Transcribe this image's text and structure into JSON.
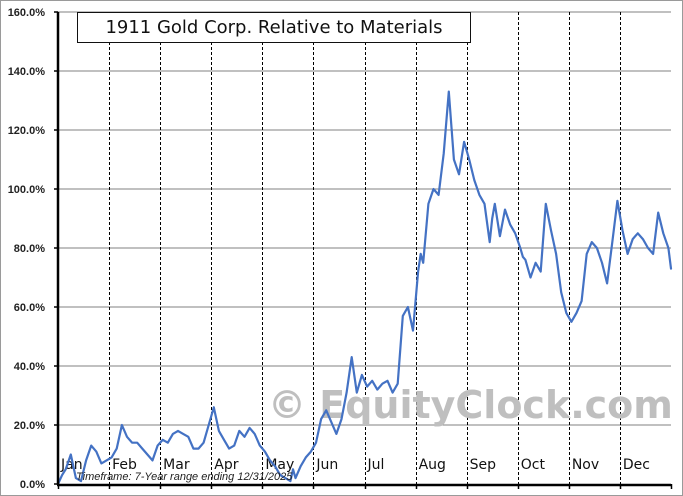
{
  "chart_data": {
    "type": "line",
    "title": "1911 Gold Corp. Relative to Materials",
    "xlabel": "",
    "ylabel": "",
    "ylim": [
      0,
      160
    ],
    "yticks": [
      "0.0%",
      "20.0%",
      "40.0%",
      "60.0%",
      "80.0%",
      "100.0%",
      "120.0%",
      "140.0%",
      "160.0%"
    ],
    "categories": [
      "Jan",
      "Feb",
      "Mar",
      "Apr",
      "May",
      "Jun",
      "Jul",
      "Aug",
      "Sep",
      "Oct",
      "Nov",
      "Dec"
    ],
    "grid": {
      "horizontal": true,
      "vertical_dashed_month_separators": true
    },
    "legend": null,
    "annotations": [
      "Timeframe: 7-Year range ending 12/31/2025",
      "© EquityClock.com"
    ],
    "series": [
      {
        "name": "1911 Gold Corp. Relative to Materials",
        "color": "#4472c4",
        "x_month_fraction": [
          0.0,
          0.08,
          0.15,
          0.25,
          0.35,
          0.45,
          0.55,
          0.65,
          0.75,
          0.85,
          0.95,
          1.05,
          1.15,
          1.25,
          1.35,
          1.45,
          1.55,
          1.65,
          1.75,
          1.85,
          1.95,
          2.05,
          2.15,
          2.25,
          2.35,
          2.45,
          2.55,
          2.65,
          2.75,
          2.85,
          2.95,
          3.05,
          3.15,
          3.25,
          3.35,
          3.45,
          3.55,
          3.65,
          3.75,
          3.85,
          3.95,
          4.05,
          4.15,
          4.25,
          4.35,
          4.45,
          4.55,
          4.6,
          4.65,
          4.75,
          4.85,
          4.95,
          5.05,
          5.15,
          5.25,
          5.35,
          5.45,
          5.55,
          5.65,
          5.75,
          5.85,
          5.95,
          6.05,
          6.15,
          6.25,
          6.35,
          6.45,
          6.55,
          6.65,
          6.75,
          6.85,
          6.95,
          7.05,
          7.1,
          7.15,
          7.25,
          7.35,
          7.45,
          7.55,
          7.65,
          7.75,
          7.85,
          7.95,
          8.05,
          8.15,
          8.25,
          8.35,
          8.45,
          8.5,
          8.55,
          8.65,
          8.75,
          8.85,
          8.95,
          9.05,
          9.1,
          9.15,
          9.25,
          9.35,
          9.45,
          9.55,
          9.65,
          9.75,
          9.85,
          9.95,
          10.05,
          10.15,
          10.25,
          10.35,
          10.45,
          10.55,
          10.65,
          10.75,
          10.85,
          10.95,
          11.05,
          11.15,
          11.25,
          11.35,
          11.45,
          11.55,
          11.65,
          11.75,
          11.85,
          11.95,
          12.0
        ],
        "values": [
          0,
          3,
          5,
          10,
          2,
          1,
          8,
          13,
          11,
          7,
          8,
          9,
          12,
          20,
          16,
          14,
          14,
          12,
          10,
          8,
          13,
          15,
          14,
          17,
          18,
          17,
          16,
          12,
          12,
          14,
          20,
          26,
          18,
          15,
          12,
          13,
          18,
          16,
          19,
          17,
          13,
          11,
          8,
          6,
          3,
          2,
          1,
          5,
          2,
          6,
          9,
          11,
          14,
          22,
          25,
          21,
          17,
          22,
          31,
          43,
          31,
          37,
          33,
          35,
          32,
          34,
          35,
          31,
          34,
          57,
          60,
          52,
          72,
          78,
          75,
          95,
          100,
          98,
          112,
          133,
          110,
          105,
          116,
          110,
          103,
          98,
          95,
          82,
          90,
          95,
          84,
          93,
          88,
          85,
          80,
          77,
          76,
          70,
          75,
          72,
          95,
          86,
          78,
          65,
          58,
          55,
          58,
          62,
          78,
          82,
          80,
          75,
          68,
          82,
          96,
          86,
          78,
          83,
          85,
          83,
          80,
          78,
          92,
          85,
          80,
          73
        ]
      }
    ]
  },
  "header": {
    "title": "1911 Gold Corp. Relative to Materials"
  },
  "footer": {
    "timeframe_note": "Timeframe: 7-Year range ending 12/31/2025",
    "watermark": "© EquityClock.com"
  },
  "axes": {
    "y_labels": [
      "0.0%",
      "20.0%",
      "40.0%",
      "60.0%",
      "80.0%",
      "100.0%",
      "120.0%",
      "140.0%",
      "160.0%"
    ],
    "x_labels": [
      "Jan",
      "Feb",
      "Mar",
      "Apr",
      "May",
      "Jun",
      "Jul",
      "Aug",
      "Sep",
      "Oct",
      "Nov",
      "Dec"
    ]
  },
  "colors": {
    "line": "#4472c4",
    "grid": "#808080",
    "watermark": "#bfbfbf",
    "axis": "#000000"
  }
}
